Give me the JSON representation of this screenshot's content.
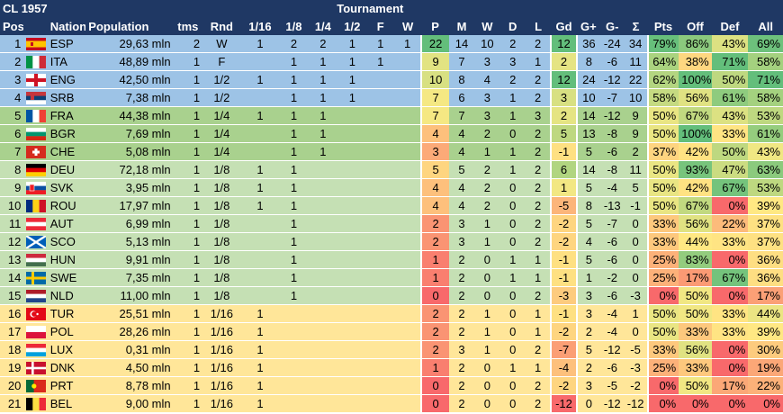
{
  "title": "CL 1957",
  "tournament_label": "Tournament",
  "headers": [
    "Pos",
    "Nation",
    "Population",
    "tms",
    "Rnd",
    "1/16",
    "1/8",
    "1/4",
    "1/2",
    "F",
    "W",
    "P",
    "M",
    "W",
    "D",
    "L",
    "Gd",
    "G+",
    "G-",
    "Σ",
    "Pts",
    "Off",
    "Def",
    "All"
  ],
  "colors": {
    "header": "#1f3864",
    "zone_blue": "#9dc3e6",
    "zone_green_dark": "#a9d18e",
    "zone_green_light": "#c5e0b4",
    "zone_yellow": "#ffe699",
    "p_green": "#63be7b",
    "p_red": "#f8696b"
  },
  "rows": [
    {
      "pos": "1",
      "flag": "esp",
      "nation": "ESP",
      "population": "29,63 mln",
      "tms": "2",
      "rnd": "W",
      "r16": "1",
      "r8": "2",
      "r4": "2",
      "r2": "1",
      "f": "1",
      "w": "1",
      "p": "22",
      "m": "14",
      "wins": "10",
      "d": "2",
      "l": "2",
      "gd": "12",
      "gp": "36",
      "gm": "-24",
      "sum": "34",
      "pts": "79%",
      "off": "86%",
      "def": "43%",
      "all": "69%",
      "zone": "blue"
    },
    {
      "pos": "2",
      "flag": "ita",
      "nation": "ITA",
      "population": "48,89 mln",
      "tms": "1",
      "rnd": "F",
      "r16": "",
      "r8": "1",
      "r4": "1",
      "r2": "1",
      "f": "1",
      "w": "",
      "p": "9",
      "m": "7",
      "wins": "3",
      "d": "3",
      "l": "1",
      "gd": "2",
      "gp": "8",
      "gm": "-6",
      "sum": "11",
      "pts": "64%",
      "off": "38%",
      "def": "71%",
      "all": "58%",
      "zone": "blue"
    },
    {
      "pos": "3",
      "flag": "eng",
      "nation": "ENG",
      "population": "42,50 mln",
      "tms": "1",
      "rnd": "1/2",
      "r16": "1",
      "r8": "1",
      "r4": "1",
      "r2": "1",
      "f": "",
      "w": "",
      "p": "10",
      "m": "8",
      "wins": "4",
      "d": "2",
      "l": "2",
      "gd": "12",
      "gp": "24",
      "gm": "-12",
      "sum": "22",
      "pts": "62%",
      "off": "100%",
      "def": "50%",
      "all": "71%",
      "zone": "blue"
    },
    {
      "pos": "4",
      "flag": "srb",
      "nation": "SRB",
      "population": "7,38 mln",
      "tms": "1",
      "rnd": "1/2",
      "r16": "",
      "r8": "1",
      "r4": "1",
      "r2": "1",
      "f": "",
      "w": "",
      "p": "7",
      "m": "6",
      "wins": "3",
      "d": "1",
      "l": "2",
      "gd": "3",
      "gp": "10",
      "gm": "-7",
      "sum": "10",
      "pts": "58%",
      "off": "56%",
      "def": "61%",
      "all": "58%",
      "zone": "blue"
    },
    {
      "pos": "5",
      "flag": "fra",
      "nation": "FRA",
      "population": "44,38 mln",
      "tms": "1",
      "rnd": "1/4",
      "r16": "1",
      "r8": "1",
      "r4": "1",
      "r2": "",
      "f": "",
      "w": "",
      "p": "7",
      "m": "7",
      "wins": "3",
      "d": "1",
      "l": "3",
      "gd": "2",
      "gp": "14",
      "gm": "-12",
      "sum": "9",
      "pts": "50%",
      "off": "67%",
      "def": "43%",
      "all": "53%",
      "zone": "green_dark"
    },
    {
      "pos": "6",
      "flag": "bgr",
      "nation": "BGR",
      "population": "7,69 mln",
      "tms": "1",
      "rnd": "1/4",
      "r16": "",
      "r8": "1",
      "r4": "1",
      "r2": "",
      "f": "",
      "w": "",
      "p": "4",
      "m": "4",
      "wins": "2",
      "d": "0",
      "l": "2",
      "gd": "5",
      "gp": "13",
      "gm": "-8",
      "sum": "9",
      "pts": "50%",
      "off": "100%",
      "def": "33%",
      "all": "61%",
      "zone": "green_dark"
    },
    {
      "pos": "7",
      "flag": "che",
      "nation": "CHE",
      "population": "5,08 mln",
      "tms": "1",
      "rnd": "1/4",
      "r16": "",
      "r8": "1",
      "r4": "1",
      "r2": "",
      "f": "",
      "w": "",
      "p": "3",
      "m": "4",
      "wins": "1",
      "d": "1",
      "l": "2",
      "gd": "-1",
      "gp": "5",
      "gm": "-6",
      "sum": "2",
      "pts": "37%",
      "off": "42%",
      "def": "50%",
      "all": "43%",
      "zone": "green_dark"
    },
    {
      "pos": "8",
      "flag": "deu",
      "nation": "DEU",
      "population": "72,18 mln",
      "tms": "1",
      "rnd": "1/8",
      "r16": "1",
      "r8": "1",
      "r4": "",
      "r2": "",
      "f": "",
      "w": "",
      "p": "5",
      "m": "5",
      "wins": "2",
      "d": "1",
      "l": "2",
      "gd": "6",
      "gp": "14",
      "gm": "-8",
      "sum": "11",
      "pts": "50%",
      "off": "93%",
      "def": "47%",
      "all": "63%",
      "zone": "green_light"
    },
    {
      "pos": "9",
      "flag": "svk",
      "nation": "SVK",
      "population": "3,95 mln",
      "tms": "1",
      "rnd": "1/8",
      "r16": "1",
      "r8": "1",
      "r4": "",
      "r2": "",
      "f": "",
      "w": "",
      "p": "4",
      "m": "4",
      "wins": "2",
      "d": "0",
      "l": "2",
      "gd": "1",
      "gp": "5",
      "gm": "-4",
      "sum": "5",
      "pts": "50%",
      "off": "42%",
      "def": "67%",
      "all": "53%",
      "zone": "green_light"
    },
    {
      "pos": "10",
      "flag": "rou",
      "nation": "ROU",
      "population": "17,97 mln",
      "tms": "1",
      "rnd": "1/8",
      "r16": "1",
      "r8": "1",
      "r4": "",
      "r2": "",
      "f": "",
      "w": "",
      "p": "4",
      "m": "4",
      "wins": "2",
      "d": "0",
      "l": "2",
      "gd": "-5",
      "gp": "8",
      "gm": "-13",
      "sum": "-1",
      "pts": "50%",
      "off": "67%",
      "def": "0%",
      "all": "39%",
      "zone": "green_light"
    },
    {
      "pos": "11",
      "flag": "aut",
      "nation": "AUT",
      "population": "6,99 mln",
      "tms": "1",
      "rnd": "1/8",
      "r16": "",
      "r8": "1",
      "r4": "",
      "r2": "",
      "f": "",
      "w": "",
      "p": "2",
      "m": "3",
      "wins": "1",
      "d": "0",
      "l": "2",
      "gd": "-2",
      "gp": "5",
      "gm": "-7",
      "sum": "0",
      "pts": "33%",
      "off": "56%",
      "def": "22%",
      "all": "37%",
      "zone": "green_light"
    },
    {
      "pos": "12",
      "flag": "sco",
      "nation": "SCO",
      "population": "5,13 mln",
      "tms": "1",
      "rnd": "1/8",
      "r16": "",
      "r8": "1",
      "r4": "",
      "r2": "",
      "f": "",
      "w": "",
      "p": "2",
      "m": "3",
      "wins": "1",
      "d": "0",
      "l": "2",
      "gd": "-2",
      "gp": "4",
      "gm": "-6",
      "sum": "0",
      "pts": "33%",
      "off": "44%",
      "def": "33%",
      "all": "37%",
      "zone": "green_light"
    },
    {
      "pos": "13",
      "flag": "hun",
      "nation": "HUN",
      "population": "9,91 mln",
      "tms": "1",
      "rnd": "1/8",
      "r16": "",
      "r8": "1",
      "r4": "",
      "r2": "",
      "f": "",
      "w": "",
      "p": "1",
      "m": "2",
      "wins": "0",
      "d": "1",
      "l": "1",
      "gd": "-1",
      "gp": "5",
      "gm": "-6",
      "sum": "0",
      "pts": "25%",
      "off": "83%",
      "def": "0%",
      "all": "36%",
      "zone": "green_light"
    },
    {
      "pos": "14",
      "flag": "swe",
      "nation": "SWE",
      "population": "7,35 mln",
      "tms": "1",
      "rnd": "1/8",
      "r16": "",
      "r8": "1",
      "r4": "",
      "r2": "",
      "f": "",
      "w": "",
      "p": "1",
      "m": "2",
      "wins": "0",
      "d": "1",
      "l": "1",
      "gd": "-1",
      "gp": "1",
      "gm": "-2",
      "sum": "0",
      "pts": "25%",
      "off": "17%",
      "def": "67%",
      "all": "36%",
      "zone": "green_light"
    },
    {
      "pos": "15",
      "flag": "nld",
      "nation": "NLD",
      "population": "11,00 mln",
      "tms": "1",
      "rnd": "1/8",
      "r16": "",
      "r8": "1",
      "r4": "",
      "r2": "",
      "f": "",
      "w": "",
      "p": "0",
      "m": "2",
      "wins": "0",
      "d": "0",
      "l": "2",
      "gd": "-3",
      "gp": "3",
      "gm": "-6",
      "sum": "-3",
      "pts": "0%",
      "off": "50%",
      "def": "0%",
      "all": "17%",
      "zone": "green_light"
    },
    {
      "pos": "16",
      "flag": "tur",
      "nation": "TUR",
      "population": "25,51 mln",
      "tms": "1",
      "rnd": "1/16",
      "r16": "1",
      "r8": "",
      "r4": "",
      "r2": "",
      "f": "",
      "w": "",
      "p": "2",
      "m": "2",
      "wins": "1",
      "d": "0",
      "l": "1",
      "gd": "-1",
      "gp": "3",
      "gm": "-4",
      "sum": "1",
      "pts": "50%",
      "off": "50%",
      "def": "33%",
      "all": "44%",
      "zone": "yellow"
    },
    {
      "pos": "17",
      "flag": "pol",
      "nation": "POL",
      "population": "28,26 mln",
      "tms": "1",
      "rnd": "1/16",
      "r16": "1",
      "r8": "",
      "r4": "",
      "r2": "",
      "f": "",
      "w": "",
      "p": "2",
      "m": "2",
      "wins": "1",
      "d": "0",
      "l": "1",
      "gd": "-2",
      "gp": "2",
      "gm": "-4",
      "sum": "0",
      "pts": "50%",
      "off": "33%",
      "def": "33%",
      "all": "39%",
      "zone": "yellow"
    },
    {
      "pos": "18",
      "flag": "lux",
      "nation": "LUX",
      "population": "0,31 mln",
      "tms": "1",
      "rnd": "1/16",
      "r16": "1",
      "r8": "",
      "r4": "",
      "r2": "",
      "f": "",
      "w": "",
      "p": "2",
      "m": "3",
      "wins": "1",
      "d": "0",
      "l": "2",
      "gd": "-7",
      "gp": "5",
      "gm": "-12",
      "sum": "-5",
      "pts": "33%",
      "off": "56%",
      "def": "0%",
      "all": "30%",
      "zone": "yellow"
    },
    {
      "pos": "19",
      "flag": "dnk",
      "nation": "DNK",
      "population": "4,50 mln",
      "tms": "1",
      "rnd": "1/16",
      "r16": "1",
      "r8": "",
      "r4": "",
      "r2": "",
      "f": "",
      "w": "",
      "p": "1",
      "m": "2",
      "wins": "0",
      "d": "1",
      "l": "1",
      "gd": "-4",
      "gp": "2",
      "gm": "-6",
      "sum": "-3",
      "pts": "25%",
      "off": "33%",
      "def": "0%",
      "all": "19%",
      "zone": "yellow"
    },
    {
      "pos": "20",
      "flag": "prt",
      "nation": "PRT",
      "population": "8,78 mln",
      "tms": "1",
      "rnd": "1/16",
      "r16": "1",
      "r8": "",
      "r4": "",
      "r2": "",
      "f": "",
      "w": "",
      "p": "0",
      "m": "2",
      "wins": "0",
      "d": "0",
      "l": "2",
      "gd": "-2",
      "gp": "3",
      "gm": "-5",
      "sum": "-2",
      "pts": "0%",
      "off": "50%",
      "def": "17%",
      "all": "22%",
      "zone": "yellow"
    },
    {
      "pos": "21",
      "flag": "bel",
      "nation": "BEL",
      "population": "9,00 mln",
      "tms": "1",
      "rnd": "1/16",
      "r16": "1",
      "r8": "",
      "r4": "",
      "r2": "",
      "f": "",
      "w": "",
      "p": "0",
      "m": "2",
      "wins": "0",
      "d": "0",
      "l": "2",
      "gd": "-12",
      "gp": "0",
      "gm": "-12",
      "sum": "-12",
      "pts": "0%",
      "off": "0%",
      "def": "0%",
      "all": "0%",
      "zone": "yellow"
    }
  ]
}
